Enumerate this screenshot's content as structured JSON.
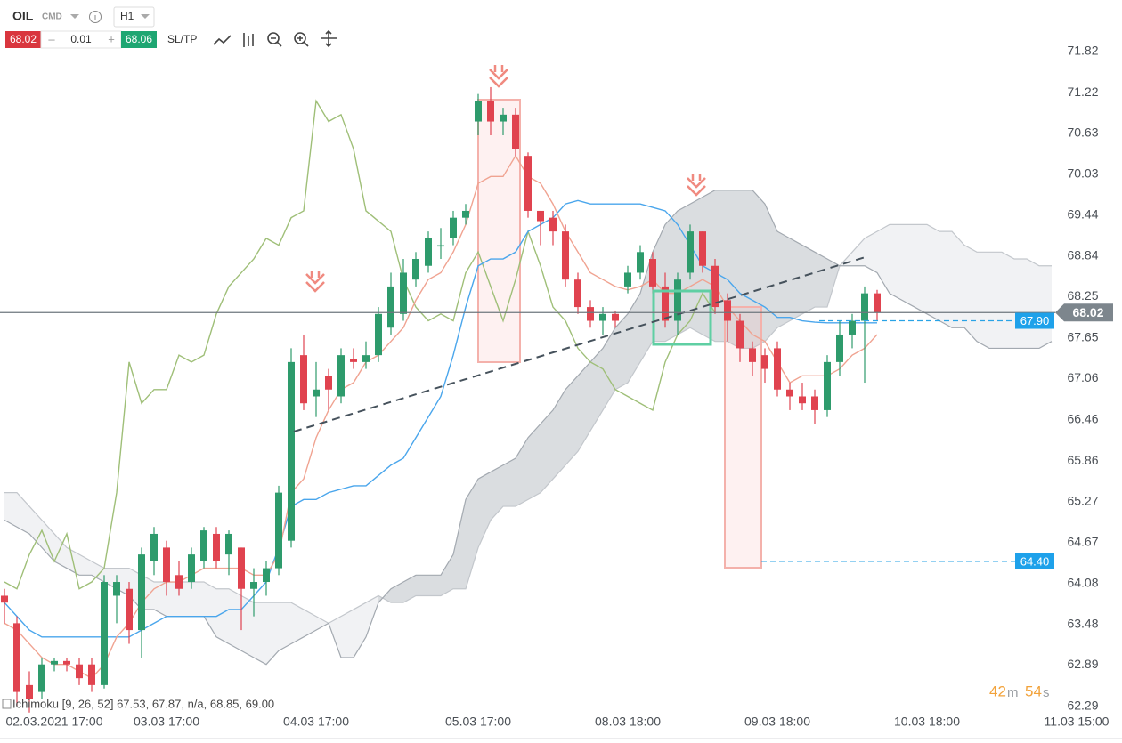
{
  "toolbar": {
    "symbol": "OIL",
    "market": "CMD",
    "timeframe": "H1",
    "bid": 68.02,
    "step": 0.01,
    "ask": 68.06,
    "sltp": "SL/TP"
  },
  "chart_data": {
    "type": "candlestick",
    "categories": [
      null,
      null,
      null,
      null,
      "02.03.2021 17:00",
      null,
      null,
      null,
      null,
      null,
      null,
      null,
      null,
      "03.03 17:00",
      null,
      null,
      null,
      null,
      null,
      null,
      null,
      null,
      null,
      null,
      null,
      "04.03 17:00",
      null,
      null,
      null,
      null,
      null,
      null,
      null,
      null,
      null,
      null,
      null,
      null,
      "05.03 17:00",
      null,
      null,
      null,
      null,
      null,
      null,
      null,
      null,
      null,
      null,
      null,
      "08.03 18:00",
      null,
      null,
      null,
      null,
      null,
      null,
      null,
      null,
      null,
      null,
      null,
      "09.03 18:00",
      null,
      null,
      null,
      null,
      null,
      null,
      null,
      null,
      null,
      null,
      null,
      "10.03 18:00",
      null,
      null,
      null,
      null,
      null,
      null,
      null,
      null,
      null,
      null,
      null,
      "11.03 15:00"
    ],
    "open": [
      63.9,
      63.5,
      62.6,
      62.5,
      62.9,
      62.95,
      62.9,
      62.9,
      62.6,
      63.9,
      64.0,
      63.4,
      64.4,
      64.6,
      64.2,
      64.1,
      64.4,
      64.8,
      64.5,
      64.6,
      64.0,
      64.1,
      64.3,
      64.7,
      67.4,
      66.8,
      67.1,
      66.8,
      67.35,
      67.3,
      67.4,
      67.8,
      68.0,
      68.5,
      68.7,
      69.0,
      69.1,
      69.4,
      70.8,
      71.1,
      70.8,
      70.9,
      70.3,
      69.5,
      69.4,
      69.2,
      68.5,
      68.1,
      67.9,
      68.0,
      68.4,
      68.6,
      68.8,
      68.4,
      67.9,
      68.6,
      69.2,
      68.7,
      68.2,
      67.9,
      67.5,
      67.4,
      67.5,
      66.9,
      66.8,
      66.8,
      66.6,
      67.3,
      67.7,
      67.9,
      68.3,
      null,
      null,
      null,
      null,
      null,
      null,
      null,
      null,
      null,
      null,
      null,
      null,
      null,
      null,
      null,
      null
    ],
    "high": [
      64.0,
      63.6,
      62.8,
      63.0,
      63.0,
      63.0,
      63.0,
      63.0,
      64.2,
      64.2,
      64.1,
      64.6,
      64.9,
      64.7,
      64.4,
      64.6,
      64.9,
      64.9,
      64.85,
      64.6,
      64.3,
      64.4,
      65.5,
      67.5,
      67.7,
      67.3,
      67.2,
      67.5,
      67.5,
      67.6,
      68.1,
      68.6,
      68.8,
      68.9,
      69.2,
      69.25,
      69.5,
      69.6,
      71.2,
      71.3,
      71.0,
      71.0,
      70.35,
      69.5,
      69.5,
      69.3,
      68.6,
      68.2,
      68.1,
      68.05,
      68.7,
      69.0,
      68.9,
      68.6,
      68.6,
      69.3,
      69.2,
      68.8,
      68.3,
      68.0,
      67.6,
      67.5,
      67.6,
      67.0,
      67.0,
      66.9,
      67.4,
      67.9,
      68.0,
      68.4,
      68.35,
      null,
      null,
      null,
      null,
      null,
      null,
      null,
      null,
      null,
      null,
      null,
      null,
      null,
      null,
      null,
      null
    ],
    "low": [
      63.5,
      62.3,
      62.2,
      62.4,
      62.8,
      62.8,
      62.6,
      62.5,
      62.55,
      63.5,
      63.2,
      63.0,
      64.2,
      63.9,
      63.9,
      64.0,
      64.3,
      64.3,
      64.2,
      63.4,
      63.6,
      63.9,
      64.2,
      64.6,
      66.6,
      66.5,
      66.6,
      66.7,
      67.2,
      67.2,
      67.3,
      67.7,
      67.9,
      68.4,
      68.6,
      68.8,
      69.0,
      69.3,
      70.6,
      70.6,
      70.6,
      70.3,
      69.4,
      69.0,
      69.0,
      68.4,
      68.0,
      67.8,
      67.7,
      67.8,
      68.3,
      68.5,
      68.3,
      67.8,
      67.7,
      68.5,
      68.6,
      68.0,
      67.6,
      67.3,
      67.1,
      67.0,
      66.8,
      66.6,
      66.6,
      66.4,
      66.5,
      67.1,
      67.5,
      67.0,
      67.9,
      null,
      null,
      null,
      null,
      null,
      null,
      null,
      null,
      null,
      null,
      null,
      null,
      null,
      null,
      null,
      null
    ],
    "close": [
      63.8,
      62.5,
      62.4,
      62.9,
      62.95,
      62.9,
      62.7,
      62.6,
      64.1,
      64.1,
      63.4,
      64.5,
      64.8,
      64.1,
      64.0,
      64.5,
      64.85,
      64.4,
      64.8,
      64.0,
      64.1,
      64.3,
      65.4,
      67.3,
      66.7,
      66.9,
      66.9,
      67.4,
      67.3,
      67.4,
      68.0,
      68.4,
      68.6,
      68.8,
      69.1,
      69.0,
      69.4,
      69.5,
      71.1,
      70.8,
      70.9,
      70.4,
      69.5,
      69.35,
      69.2,
      68.5,
      68.1,
      67.9,
      68.0,
      67.9,
      68.6,
      68.9,
      68.4,
      67.9,
      68.5,
      69.2,
      68.7,
      68.1,
      67.9,
      67.5,
      67.3,
      67.2,
      66.9,
      66.8,
      66.7,
      66.6,
      67.3,
      67.7,
      67.9,
      68.3,
      68.02,
      null,
      null,
      null,
      null,
      null,
      null,
      null,
      null,
      null,
      null,
      null,
      null,
      null,
      null,
      null,
      null
    ],
    "up_color": "#2e9b6c",
    "down_color": "#e0434f",
    "lines": [
      {
        "color": "#9fbf78",
        "values": [
          64.1,
          64.0,
          64.5,
          64.85,
          64.4,
          64.8,
          64.0,
          64.1,
          64.3,
          65.4,
          67.3,
          66.7,
          66.9,
          66.9,
          67.4,
          67.3,
          67.4,
          68.0,
          68.4,
          68.6,
          68.8,
          69.1,
          69.0,
          69.4,
          69.5,
          71.1,
          70.8,
          70.9,
          70.4,
          69.5,
          69.35,
          69.2,
          68.5,
          68.1,
          67.9,
          68.0,
          67.9,
          68.6,
          68.9,
          68.4,
          67.9,
          68.5,
          69.2,
          68.7,
          68.1,
          67.9,
          67.5,
          67.3,
          67.2,
          66.9,
          66.8,
          66.7,
          66.6,
          67.3,
          67.7,
          67.9,
          68.3,
          68.02,
          null,
          null,
          null,
          null,
          null,
          null,
          null,
          null,
          null,
          null,
          null,
          null,
          null,
          null,
          null,
          null,
          null,
          null,
          null,
          null,
          null,
          null,
          null,
          null,
          null,
          null,
          null,
          null,
          null
        ]
      },
      {
        "color": "#4aa6ec",
        "values": [
          63.8,
          63.6,
          63.4,
          63.3,
          63.3,
          63.3,
          63.3,
          63.3,
          63.3,
          63.3,
          63.3,
          63.4,
          63.5,
          63.6,
          63.6,
          63.6,
          63.6,
          63.6,
          63.7,
          63.7,
          63.9,
          64.1,
          64.6,
          65.2,
          65.3,
          65.3,
          65.4,
          65.45,
          65.5,
          65.5,
          65.65,
          65.8,
          65.9,
          66.2,
          66.5,
          66.8,
          67.4,
          68.1,
          68.7,
          68.8,
          68.8,
          68.9,
          69.2,
          69.3,
          69.4,
          69.6,
          69.65,
          69.6,
          69.6,
          69.6,
          69.6,
          69.6,
          69.55,
          69.5,
          69.3,
          69.0,
          68.7,
          68.6,
          68.5,
          68.3,
          68.2,
          68.1,
          67.95,
          67.95,
          67.9,
          67.88,
          67.87,
          67.87,
          67.87,
          67.87,
          67.87,
          null,
          null,
          null,
          null,
          null,
          null,
          null,
          null,
          null,
          null,
          null,
          null,
          null,
          null,
          null,
          null
        ]
      },
      {
        "color": "#f0a391",
        "values": [
          63.5,
          63.4,
          63.2,
          63.0,
          62.9,
          62.9,
          62.8,
          62.7,
          62.9,
          63.3,
          63.5,
          63.8,
          64.0,
          64.1,
          64.1,
          64.2,
          64.3,
          64.3,
          64.3,
          64.3,
          64.2,
          64.2,
          64.5,
          65.4,
          65.6,
          66.2,
          66.6,
          66.9,
          67.0,
          67.3,
          67.4,
          67.6,
          67.8,
          68.2,
          68.5,
          68.6,
          68.9,
          69.3,
          69.9,
          70.0,
          70.0,
          70.3,
          70.0,
          69.9,
          69.6,
          69.2,
          68.9,
          68.6,
          68.5,
          68.4,
          68.35,
          68.4,
          68.5,
          68.3,
          68.3,
          68.4,
          68.5,
          68.4,
          68.1,
          67.9,
          67.7,
          67.6,
          67.3,
          67.0,
          67.1,
          67.1,
          67.1,
          67.2,
          67.4,
          67.5,
          67.7,
          null,
          null,
          null,
          null,
          null,
          null,
          null,
          null,
          null,
          null,
          null,
          null,
          null,
          null,
          null,
          null
        ]
      }
    ],
    "cloud": {
      "span_a": [
        65.4,
        65.4,
        65.2,
        65.0,
        64.8,
        64.6,
        64.5,
        64.4,
        64.3,
        64.3,
        64.3,
        64.2,
        64.1,
        64.1,
        64.1,
        64.1,
        64.1,
        64.0,
        64.0,
        63.9,
        63.8,
        63.8,
        63.8,
        63.8,
        63.7,
        63.6,
        63.5,
        63.6,
        63.7,
        63.8,
        63.9,
        63.8,
        63.8,
        63.9,
        63.9,
        63.9,
        64.0,
        64.0,
        64.6,
        65.0,
        65.2,
        65.2,
        65.3,
        65.4,
        65.6,
        65.8,
        66.0,
        66.3,
        66.6,
        66.9,
        67.0,
        67.3,
        67.6,
        67.6,
        67.7,
        67.8,
        67.7,
        67.6,
        67.6,
        67.5,
        67.5,
        67.6,
        67.8,
        67.9,
        68.0,
        68.1,
        68.1,
        68.7,
        68.9,
        69.1,
        69.2,
        69.3,
        69.3,
        69.3,
        69.3,
        69.2,
        69.2,
        69.0,
        68.9,
        68.9,
        68.9,
        68.8,
        68.8,
        68.7,
        68.7,
        null,
        null
      ],
      "span_b": [
        65.0,
        64.9,
        64.8,
        64.6,
        64.4,
        64.3,
        64.2,
        64.2,
        64.1,
        64.0,
        63.9,
        63.7,
        63.7,
        63.6,
        63.6,
        63.6,
        63.6,
        63.3,
        63.2,
        63.1,
        63.0,
        62.9,
        63.1,
        63.2,
        63.3,
        63.4,
        63.5,
        63.0,
        63.0,
        63.3,
        63.8,
        64.0,
        64.1,
        64.2,
        64.2,
        64.2,
        64.5,
        65.3,
        65.6,
        65.7,
        65.8,
        65.9,
        66.2,
        66.4,
        66.6,
        66.9,
        67.1,
        67.3,
        67.5,
        67.8,
        68.0,
        68.3,
        68.9,
        69.3,
        69.5,
        69.6,
        69.7,
        69.8,
        69.8,
        69.8,
        69.8,
        69.6,
        69.2,
        69.1,
        69.0,
        68.9,
        68.8,
        68.7,
        68.7,
        68.7,
        68.6,
        68.3,
        68.2,
        68.1,
        68.0,
        67.9,
        67.8,
        67.8,
        67.6,
        67.5,
        67.5,
        67.5,
        67.5,
        67.5,
        67.6,
        null,
        null
      ]
    },
    "ylim": [
      62.21,
      72.05
    ],
    "yticks": [
      71.82,
      71.22,
      70.63,
      70.03,
      69.44,
      68.84,
      68.25,
      67.65,
      67.06,
      66.46,
      65.86,
      65.27,
      64.67,
      64.08,
      63.48,
      62.89,
      62.29
    ],
    "last_price": 68.02,
    "levels": [
      {
        "value": 67.9,
        "label": "67.90"
      },
      {
        "value": 64.4,
        "label": "64.40"
      }
    ],
    "indicator": "Ichimoku [9, 26, 52] 67.53, 67.87, n/a, 68.85, 69.00",
    "timer": {
      "minutes": "42",
      "m": "m",
      "seconds": "54",
      "s": "s"
    }
  }
}
